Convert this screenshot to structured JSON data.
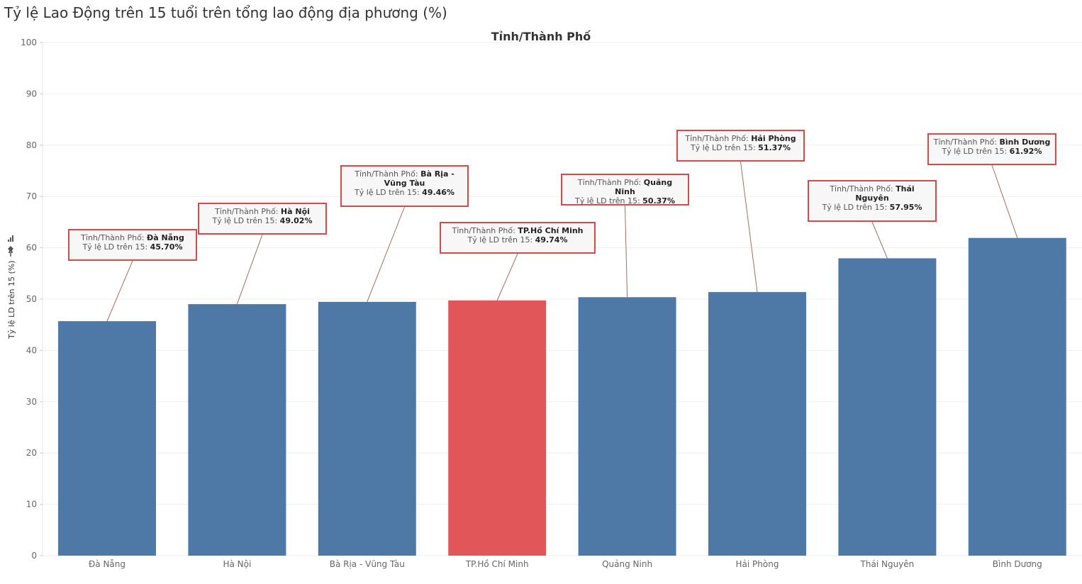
{
  "page": {
    "title": "Tỷ lệ Lao Động trên 15  tuổi trên tổng lao động địa phương (%)"
  },
  "chart_data": {
    "type": "bar",
    "title": "Tỉnh/Thành Phố",
    "ylabel": "Tỷ lệ LD trên 15 (%)",
    "xlabel": "",
    "ylim": [
      0,
      100
    ],
    "yticks": [
      0,
      10,
      20,
      30,
      40,
      50,
      60,
      70,
      80,
      90,
      100
    ],
    "grid": true,
    "categories": [
      "Đà Nẵng",
      "Hà Nội",
      "Bà Rịa - Vũng Tàu",
      "TP.Hồ Chí Minh",
      "Quảng Ninh",
      "Hải Phòng",
      "Thái Nguyên",
      "Bình Dương"
    ],
    "values": [
      45.7,
      49.02,
      49.46,
      49.74,
      50.37,
      51.37,
      57.95,
      61.92
    ],
    "highlight": "TP.Hồ Chí Minh",
    "colors": {
      "bar": "#4e79a7",
      "highlight": "#e15759",
      "annotation_border": "#d9474b",
      "leader": "#a0705a"
    },
    "annotations": {
      "category_key": "Tỉnh/Thành Phố:",
      "value_key": "Tỷ lệ LD trên 15:",
      "items": [
        {
          "category": "Đà Nẵng",
          "value": "45.70%"
        },
        {
          "category": "Hà Nội",
          "value": "49.02%"
        },
        {
          "category": "Bà Rịa - Vũng Tàu",
          "value": "49.46%"
        },
        {
          "category": "TP.Hồ Chí Minh",
          "value": "49.74%"
        },
        {
          "category": "Quảng Ninh",
          "value": "50.37%"
        },
        {
          "category": "Hải Phòng",
          "value": "51.37%"
        },
        {
          "category": "Thái Nguyên",
          "value": "57.95%"
        },
        {
          "category": "Bình Dương",
          "value": "61.92%"
        }
      ]
    }
  },
  "icons": {
    "axis": [
      "sort-icon",
      "pin-icon"
    ]
  }
}
